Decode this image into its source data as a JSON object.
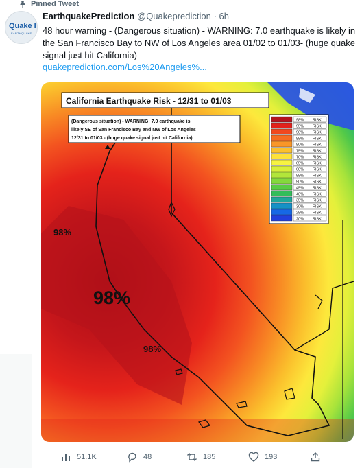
{
  "pinned_label": "Pinned Tweet",
  "author": {
    "display_name": "EarthquakePrediction",
    "handle": "@Quakeprediction",
    "separator": "·",
    "time": "6h",
    "avatar_text": "Quake I",
    "avatar_subtext": "EARTHQUAKE"
  },
  "tweet": {
    "text": "48 hour warning - (Dangerous situation) - WARNING: 7.0 earthquake is likely in the San Francisco Bay to NW of Los Angeles area 01/02 to 01/03- (huge quake signal just hit California)",
    "link": "quakeprediction.com/Los%20Angeles%..."
  },
  "map": {
    "title": "California Earthquake Risk - 12/31 to 01/03",
    "note_lines": [
      "(Dangerous situation) - WARNING: 7.0 earthquake is",
      "likely SE of San Francisco Bay and NW of Los Angeles",
      "12/31 to 01/03 - (huge quake signal just hit California)"
    ],
    "labels": {
      "top": "98%",
      "big": "98%",
      "lower": "98%"
    },
    "legend": [
      {
        "pct": "98%",
        "word": "RISK",
        "color": "#b4141e"
      },
      {
        "pct": "95%",
        "word": "RISK",
        "color": "#e2211b"
      },
      {
        "pct": "90%",
        "word": "RISK",
        "color": "#f1481f"
      },
      {
        "pct": "85%",
        "word": "RISK",
        "color": "#f66c22"
      },
      {
        "pct": "80%",
        "word": "RISK",
        "color": "#f99627"
      },
      {
        "pct": "75%",
        "word": "RISK",
        "color": "#fbc02e"
      },
      {
        "pct": "70%",
        "word": "RISK",
        "color": "#fde23a"
      },
      {
        "pct": "65%",
        "word": "RISK",
        "color": "#f7f341"
      },
      {
        "pct": "60%",
        "word": "RISK",
        "color": "#d8ef3a"
      },
      {
        "pct": "55%",
        "word": "RISK",
        "color": "#b2e63a"
      },
      {
        "pct": "50%",
        "word": "RISK",
        "color": "#84d93d"
      },
      {
        "pct": "45%",
        "word": "RISK",
        "color": "#58cc45"
      },
      {
        "pct": "40%",
        "word": "RISK",
        "color": "#33bd5a"
      },
      {
        "pct": "35%",
        "word": "RISK",
        "color": "#1fa79a"
      },
      {
        "pct": "30%",
        "word": "RISK",
        "color": "#1591c6"
      },
      {
        "pct": "25%",
        "word": "RISK",
        "color": "#1668e6"
      },
      {
        "pct": "20%",
        "word": "RISK",
        "color": "#2140dd"
      }
    ]
  },
  "stats": {
    "views": "51.1K",
    "replies": "48",
    "retweets": "185",
    "likes": "193"
  },
  "colors": {
    "link": "#1d9bf0",
    "secondary": "#536471"
  },
  "icons": [
    "pin-icon",
    "views-icon",
    "reply-icon",
    "retweet-icon",
    "like-icon",
    "share-icon"
  ]
}
